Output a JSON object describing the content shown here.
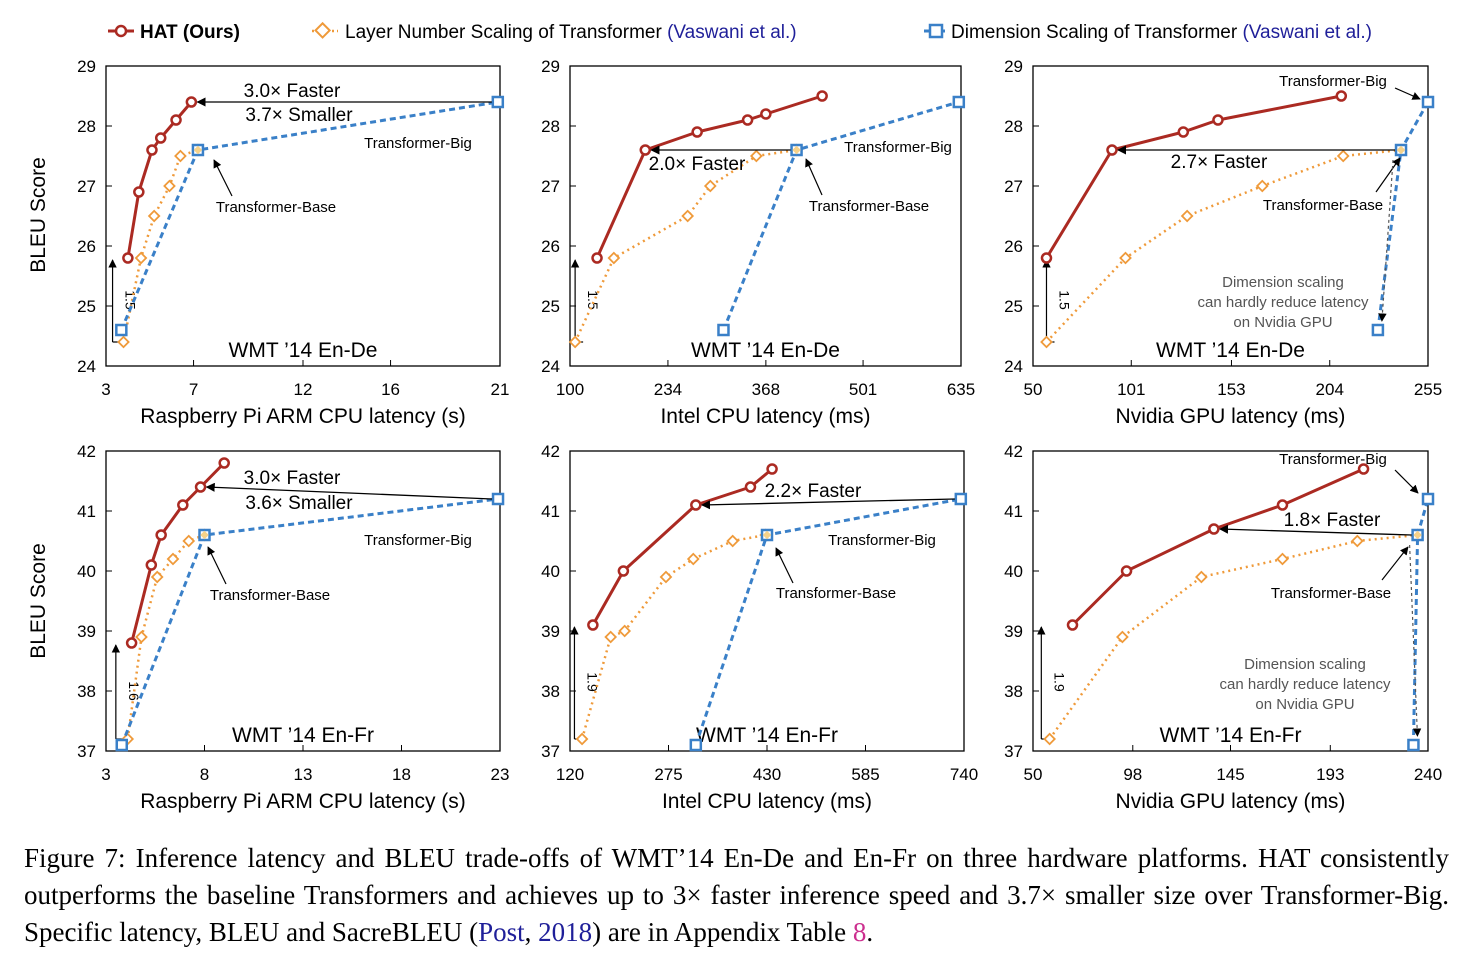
{
  "colors": {
    "hat": "#ab2a22",
    "layer": "#ef9a3a",
    "dim": "#3a80c8",
    "citation": "#1f1f99",
    "link": "#cc2f8f"
  },
  "legend": {
    "hat": "HAT (Ours)",
    "layer": "Layer Number Scaling of Transformer",
    "dim": "Dimension Scaling of Transformer",
    "ref": "(Vaswani et al.)"
  },
  "labels": {
    "ylabel": "BLEU Score",
    "transformer_base": "Transformer-Base",
    "transformer_big": "Transformer-Big"
  },
  "chart_data": [
    {
      "type": "line",
      "dataset": "WMT ’14 En-De",
      "xlabel": "Raspberry Pi ARM CPU latency (s)",
      "ylabel": "BLEU Score",
      "xlim": [
        3,
        21
      ],
      "ylim": [
        24,
        29
      ],
      "xticks": [
        3,
        7,
        12,
        16,
        21
      ],
      "yticks": [
        24,
        25,
        26,
        27,
        28,
        29
      ],
      "series": [
        {
          "name": "HAT (Ours)",
          "x": [
            4.0,
            4.5,
            5.1,
            5.5,
            6.2,
            6.9
          ],
          "y": [
            25.8,
            26.9,
            27.6,
            27.8,
            28.1,
            28.4
          ]
        },
        {
          "name": "Layer Number Scaling of Transformer",
          "x": [
            3.8,
            4.6,
            5.2,
            5.9,
            6.4,
            7.2
          ],
          "y": [
            24.4,
            25.8,
            26.5,
            27.0,
            27.5,
            27.6
          ]
        },
        {
          "name": "Dimension Scaling of Transformer",
          "x": [
            3.7,
            7.2,
            20.9
          ],
          "y": [
            24.6,
            27.6,
            28.4
          ]
        }
      ],
      "annotations": {
        "speedup": "3.0× Faster",
        "size": "3.7× Smaller",
        "delta": "1.5",
        "arrow_from": [
          20.9,
          28.4
        ],
        "arrow_to": [
          6.9,
          28.4
        ],
        "big_point": [
          20.9,
          28.4
        ],
        "base_point": [
          7.2,
          27.6
        ],
        "delta_x": 3.3,
        "delta_y": [
          24.4,
          25.8
        ]
      }
    },
    {
      "type": "line",
      "dataset": "WMT ’14 En-De",
      "xlabel": "Intel CPU latency (ms)",
      "ylabel": "",
      "xlim": [
        100,
        635
      ],
      "ylim": [
        24,
        29
      ],
      "xticks": [
        100,
        234,
        368,
        501,
        635
      ],
      "yticks": [
        24,
        25,
        26,
        27,
        28,
        29
      ],
      "series": [
        {
          "name": "HAT (Ours)",
          "x": [
            137,
            203,
            274,
            343,
            368,
            445
          ],
          "y": [
            25.8,
            27.6,
            27.9,
            28.1,
            28.2,
            28.5
          ]
        },
        {
          "name": "Layer Number Scaling of Transformer",
          "x": [
            107,
            160,
            261,
            292,
            355,
            410
          ],
          "y": [
            24.4,
            25.8,
            26.5,
            27.0,
            27.5,
            27.6
          ]
        },
        {
          "name": "Dimension Scaling of Transformer",
          "x": [
            310,
            410,
            632
          ],
          "y": [
            24.6,
            27.6,
            28.4
          ]
        }
      ],
      "annotations": {
        "speedup": "2.0× Faster",
        "delta": "1.5",
        "arrow_from": [
          410,
          27.6
        ],
        "arrow_to": [
          203,
          27.6
        ],
        "big_point": [
          632,
          28.4
        ],
        "base_point": [
          410,
          27.6
        ],
        "delta_x": 107,
        "delta_y": [
          24.4,
          25.8
        ]
      }
    },
    {
      "type": "line",
      "dataset": "WMT ’14 En-De",
      "xlabel": "Nvidia GPU latency (ms)",
      "ylabel": "",
      "xlim": [
        50,
        255
      ],
      "ylim": [
        24,
        29
      ],
      "xticks": [
        50,
        101,
        153,
        204,
        255
      ],
      "yticks": [
        24,
        25,
        26,
        27,
        28,
        29
      ],
      "series": [
        {
          "name": "HAT (Ours)",
          "x": [
            57,
            91,
            128,
            146,
            210
          ],
          "y": [
            25.8,
            27.6,
            27.9,
            28.1,
            28.5
          ]
        },
        {
          "name": "Layer Number Scaling of Transformer",
          "x": [
            57,
            98,
            130,
            169,
            211,
            241
          ],
          "y": [
            24.4,
            25.8,
            26.5,
            27.0,
            27.5,
            27.6
          ]
        },
        {
          "name": "Dimension Scaling of Transformer",
          "x": [
            229,
            241,
            255
          ],
          "y": [
            24.6,
            27.6,
            28.4
          ]
        }
      ],
      "annotations": {
        "speedup": "2.7× Faster",
        "delta": "1.5",
        "note": [
          "Dimension scaling",
          "can hardly reduce latency",
          "on Nvidia GPU"
        ],
        "arrow_from": [
          241,
          27.6
        ],
        "arrow_to": [
          91,
          27.6
        ],
        "big_point": [
          255,
          28.4
        ],
        "base_point": [
          241,
          27.6
        ],
        "delta_x": 57,
        "delta_y": [
          24.4,
          25.8
        ]
      }
    },
    {
      "type": "line",
      "dataset": "WMT ’14 En-Fr",
      "xlabel": "Raspberry Pi ARM CPU latency (s)",
      "ylabel": "BLEU Score",
      "xlim": [
        3,
        23
      ],
      "ylim": [
        37,
        42
      ],
      "xticks": [
        3,
        8,
        13,
        18,
        23
      ],
      "yticks": [
        37,
        38,
        39,
        40,
        41,
        42
      ],
      "series": [
        {
          "name": "HAT (Ours)",
          "x": [
            4.3,
            5.3,
            5.8,
            6.9,
            7.8,
            9.0
          ],
          "y": [
            38.8,
            40.1,
            40.6,
            41.1,
            41.4,
            41.8
          ]
        },
        {
          "name": "Layer Number Scaling of Transformer",
          "x": [
            4.1,
            4.8,
            5.6,
            6.4,
            7.2,
            8.0
          ],
          "y": [
            37.2,
            38.9,
            39.9,
            40.2,
            40.5,
            40.6
          ]
        },
        {
          "name": "Dimension Scaling of Transformer",
          "x": [
            3.8,
            8.0,
            22.9
          ],
          "y": [
            37.1,
            40.6,
            41.2
          ]
        }
      ],
      "annotations": {
        "speedup": "3.0× Faster",
        "size": "3.6× Smaller",
        "delta": "1.6",
        "arrow_from": [
          22.9,
          41.2
        ],
        "arrow_to": [
          7.8,
          41.4
        ],
        "big_point": [
          22.9,
          41.2
        ],
        "base_point": [
          8.0,
          40.6
        ],
        "delta_x": 3.5,
        "delta_y": [
          37.2,
          38.8
        ]
      }
    },
    {
      "type": "line",
      "dataset": "WMT ’14 En-Fr",
      "xlabel": "Intel CPU latency (ms)",
      "ylabel": "",
      "xlim": [
        120,
        740
      ],
      "ylim": [
        37,
        42
      ],
      "xticks": [
        120,
        275,
        430,
        585,
        740
      ],
      "yticks": [
        37,
        38,
        39,
        40,
        41,
        42
      ],
      "series": [
        {
          "name": "HAT (Ours)",
          "x": [
            156,
            204,
            318,
            404,
            438
          ],
          "y": [
            39.1,
            40.0,
            41.1,
            41.4,
            41.7
          ]
        },
        {
          "name": "Layer Number Scaling of Transformer",
          "x": [
            139,
            184,
            206,
            271,
            314,
            376,
            428
          ],
          "y": [
            37.2,
            38.9,
            39.0,
            39.9,
            40.2,
            40.5,
            40.6
          ]
        },
        {
          "name": "Dimension Scaling of Transformer",
          "x": [
            318,
            430,
            735
          ],
          "y": [
            37.1,
            40.6,
            41.2
          ]
        }
      ],
      "annotations": {
        "speedup": "2.2× Faster",
        "delta": "1.9",
        "arrow_from": [
          735,
          41.2
        ],
        "arrow_to": [
          318,
          41.1
        ],
        "big_point": [
          735,
          41.2
        ],
        "base_point": [
          430,
          40.6
        ],
        "delta_x": 127,
        "delta_y": [
          37.2,
          39.1
        ]
      }
    },
    {
      "type": "line",
      "dataset": "WMT ’14 En-Fr",
      "xlabel": "Nvidia GPU latency (ms)",
      "ylabel": "",
      "xlim": [
        50,
        240
      ],
      "ylim": [
        37,
        42
      ],
      "xticks": [
        50,
        98,
        145,
        193,
        240
      ],
      "yticks": [
        37,
        38,
        39,
        40,
        41,
        42
      ],
      "series": [
        {
          "name": "HAT (Ours)",
          "x": [
            69,
            95,
            137,
            170,
            209
          ],
          "y": [
            39.1,
            40.0,
            40.7,
            41.1,
            41.7
          ]
        },
        {
          "name": "Layer Number Scaling of Transformer",
          "x": [
            58,
            93,
            131,
            170,
            206,
            235
          ],
          "y": [
            37.2,
            38.9,
            39.9,
            40.2,
            40.5,
            40.6
          ]
        },
        {
          "name": "Dimension Scaling of Transformer",
          "x": [
            233,
            235,
            240
          ],
          "y": [
            37.1,
            40.6,
            41.2
          ]
        }
      ],
      "annotations": {
        "speedup": "1.8× Faster",
        "delta": "1.9",
        "note": [
          "Dimension scaling",
          "can hardly reduce latency",
          "on Nvidia GPU"
        ],
        "arrow_from": [
          235,
          40.6
        ],
        "arrow_to": [
          137,
          40.7
        ],
        "big_point": [
          240,
          41.2
        ],
        "base_point": [
          235,
          40.6
        ],
        "delta_x": 54,
        "delta_y": [
          37.2,
          39.1
        ]
      }
    }
  ],
  "caption": {
    "part1": "Figure 7: Inference latency and BLEU trade-offs of WMT’14 En-De and En-Fr on three hardware platforms. HAT consistently outperforms the baseline Transformers and achieves up to 3× faster inference speed and 3.7× smaller size over Transformer-Big. Specific latency, BLEU and SacreBLEU (",
    "cite_author": "Post",
    "cite_sep": ", ",
    "cite_year": "2018",
    "part2": ") are in Appendix Table ",
    "table_ref": "8",
    "part3": "."
  }
}
